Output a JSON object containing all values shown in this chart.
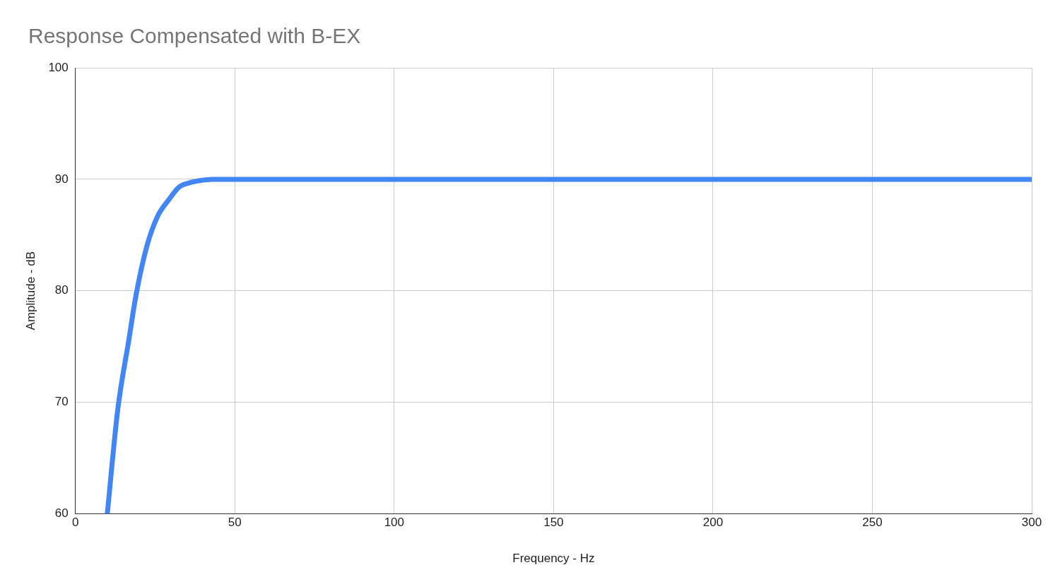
{
  "chart_data": {
    "type": "line",
    "title": "Response Compensated with B-EX",
    "xlabel": "Frequency - Hz",
    "ylabel": "Amplitude - dB",
    "series": [
      {
        "color": "#4285f4",
        "x": [
          10,
          13.3,
          16.7,
          19,
          22.4,
          25.8,
          29.1,
          32.5,
          35.9,
          39.3,
          42.7,
          50,
          100,
          150,
          200,
          250,
          300
        ],
        "values": [
          60,
          69.4,
          75.5,
          79.6,
          84,
          86.7,
          88.1,
          89.3,
          89.7,
          89.9,
          90,
          90,
          90,
          90,
          90,
          90,
          90
        ]
      }
    ],
    "xlim": [
      0,
      300
    ],
    "xticks": [
      0,
      50,
      100,
      150,
      200,
      250,
      300
    ],
    "ylim": [
      60,
      100
    ],
    "yticks": [
      60,
      70,
      80,
      90,
      100
    ],
    "grid": true,
    "legend": false,
    "marker": "none",
    "line_style": "solid"
  }
}
